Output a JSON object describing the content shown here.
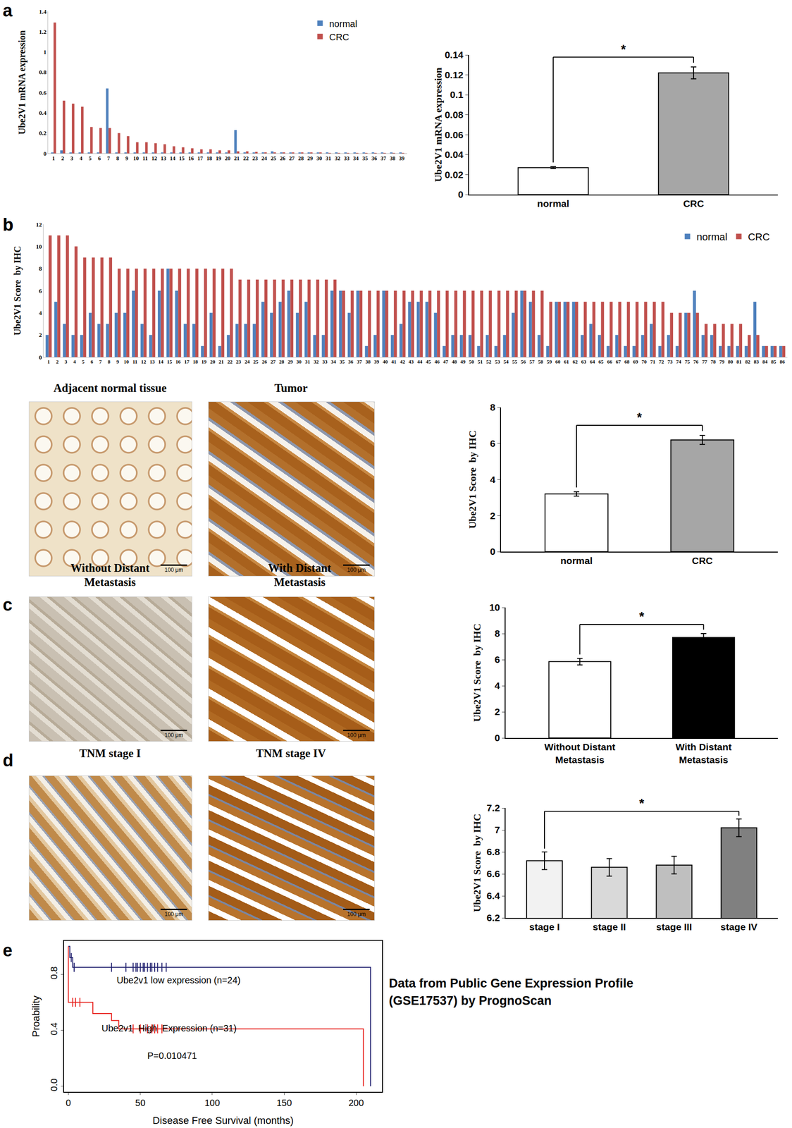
{
  "chart_data": [
    {
      "panel": "a",
      "type": "bar",
      "categories": [
        "1",
        "2",
        "3",
        "4",
        "5",
        "6",
        "7",
        "8",
        "9",
        "10",
        "11",
        "12",
        "13",
        "14",
        "15",
        "16",
        "17",
        "18",
        "19",
        "20",
        "21",
        "22",
        "23",
        "24",
        "25",
        "26",
        "27",
        "28",
        "29",
        "30",
        "31",
        "32",
        "33",
        "34",
        "35",
        "36",
        "37",
        "38",
        "39"
      ],
      "series": [
        {
          "name": "normal",
          "color": "#4f81bd",
          "values": [
            0.005,
            0.03,
            0.005,
            0.005,
            0.005,
            0.005,
            0.64,
            0.005,
            0.005,
            0.005,
            0.005,
            0.005,
            0.005,
            0.005,
            0.005,
            0.005,
            0.005,
            0.005,
            0.005,
            0.005,
            0.23,
            0.01,
            0.005,
            0.01,
            0.02,
            0.01,
            0.005,
            0.005,
            0.005,
            0.005,
            0.01,
            0.01,
            0.005,
            0.005,
            0.005,
            0.01,
            0.005,
            0.005,
            0.005
          ]
        },
        {
          "name": "CRC",
          "color": "#c0504d",
          "values": [
            1.29,
            0.52,
            0.49,
            0.46,
            0.26,
            0.25,
            0.25,
            0.2,
            0.17,
            0.11,
            0.11,
            0.1,
            0.09,
            0.07,
            0.06,
            0.05,
            0.04,
            0.04,
            0.03,
            0.03,
            0.02,
            0.02,
            0.015,
            0.01,
            0.01,
            0.01,
            0.008,
            0.006,
            0.005,
            0.005,
            0.004,
            0.004,
            0.003,
            0.003,
            0.003,
            0.002,
            0.002,
            0.002,
            0.001
          ]
        }
      ],
      "y_label": "Ube2V1 mRNA expression",
      "ylim": [
        0,
        1.4
      ],
      "yticks": [
        0,
        0.2,
        0.4,
        0.6,
        0.8,
        1,
        1.2,
        1.4
      ],
      "grid": false,
      "legend": "top right"
    },
    {
      "type": "bar",
      "categories": [
        "normal",
        "CRC"
      ],
      "values": [
        0.027,
        0.122
      ],
      "errors": [
        0.001,
        0.006
      ],
      "colors": [
        "#ffffff",
        "#a6a6a6"
      ],
      "y_label": "Ube2V1 mRNA expression",
      "ylim": [
        0,
        0.14
      ],
      "yticks": [
        0,
        0.02,
        0.04,
        0.06,
        0.08,
        0.1,
        0.12,
        0.14
      ],
      "grid": false,
      "significance": {
        "label": "*",
        "between": [
          0,
          1
        ]
      }
    },
    {
      "panel": "b",
      "type": "bar",
      "categories": [
        "1",
        "2",
        "3",
        "4",
        "5",
        "6",
        "7",
        "8",
        "9",
        "10",
        "11",
        "12",
        "13",
        "14",
        "15",
        "16",
        "17",
        "18",
        "19",
        "20",
        "21",
        "22",
        "23",
        "24",
        "25",
        "26",
        "27",
        "28",
        "29",
        "30",
        "31",
        "32",
        "33",
        "34",
        "35",
        "36",
        "37",
        "38",
        "39",
        "40",
        "41",
        "42",
        "43",
        "44",
        "45",
        "46",
        "47",
        "48",
        "49",
        "50",
        "51",
        "52",
        "53",
        "54",
        "55",
        "56",
        "57",
        "58",
        "59",
        "60",
        "61",
        "62",
        "63",
        "64",
        "65",
        "66",
        "67",
        "68",
        "69",
        "70",
        "71",
        "72",
        "73",
        "74",
        "75",
        "76",
        "77",
        "78",
        "79",
        "80",
        "81",
        "82",
        "83",
        "84",
        "85",
        "86"
      ],
      "series": [
        {
          "name": "normal",
          "color": "#4f81bd",
          "values": [
            2,
            5,
            3,
            2,
            2,
            4,
            3,
            3,
            4,
            4,
            6,
            3,
            2,
            6,
            8,
            6,
            3,
            3,
            1,
            4,
            1,
            2,
            3,
            3,
            3,
            5,
            4,
            5,
            6,
            4,
            5,
            2,
            2,
            6,
            6,
            4,
            6,
            1,
            2,
            6,
            2,
            3,
            5,
            5,
            5,
            4,
            1,
            2,
            2,
            2,
            1,
            2,
            1,
            2,
            4,
            6,
            5,
            2,
            1,
            5,
            5,
            5,
            2,
            3,
            2,
            1,
            2,
            1,
            1,
            2,
            3,
            1,
            2,
            1,
            4,
            6,
            2,
            2,
            1,
            1,
            1,
            1,
            5,
            1,
            1,
            1
          ]
        },
        {
          "name": "CRC",
          "color": "#c0504d",
          "values": [
            11,
            11,
            11,
            10,
            9,
            9,
            9,
            9,
            8,
            8,
            8,
            8,
            8,
            8,
            8,
            8,
            8,
            8,
            8,
            8,
            8,
            8,
            7,
            7,
            7,
            7,
            7,
            7,
            7,
            7,
            7,
            7,
            7,
            7,
            6,
            6,
            6,
            6,
            6,
            6,
            6,
            6,
            6,
            6,
            6,
            6,
            6,
            6,
            6,
            6,
            6,
            6,
            6,
            6,
            6,
            6,
            6,
            6,
            5,
            5,
            5,
            5,
            5,
            5,
            5,
            5,
            5,
            5,
            5,
            5,
            5,
            5,
            4,
            4,
            4,
            4,
            3,
            3,
            3,
            3,
            3,
            2,
            2,
            1,
            1,
            1
          ]
        }
      ],
      "y_label": "Ube2V1 Score  by IHC",
      "ylim": [
        0,
        12
      ],
      "yticks": [
        0,
        2,
        4,
        6,
        8,
        10,
        12
      ],
      "grid": false,
      "legend": "top right"
    },
    {
      "type": "bar",
      "categories": [
        "normal",
        "CRC"
      ],
      "values": [
        3.2,
        6.2
      ],
      "errors": [
        0.12,
        0.25
      ],
      "colors": [
        "#ffffff",
        "#a6a6a6"
      ],
      "y_label": "Ube2V1 Score  by IHC",
      "ylim": [
        0,
        8
      ],
      "yticks": [
        0,
        2,
        4,
        6,
        8
      ],
      "grid": false,
      "significance": {
        "label": "*",
        "between": [
          0,
          1
        ]
      }
    },
    {
      "type": "bar",
      "categories": [
        "Without Distant Metastasis",
        "With Distant Metastasis"
      ],
      "values": [
        5.85,
        7.7
      ],
      "errors": [
        0.25,
        0.3
      ],
      "colors": [
        "#ffffff",
        "#000000"
      ],
      "y_label": "Ube2V1 Score  by IHC",
      "ylim": [
        0,
        10
      ],
      "yticks": [
        0,
        2,
        4,
        6,
        8,
        10
      ],
      "grid": false,
      "significance": {
        "label": "*",
        "between": [
          0,
          1
        ]
      }
    },
    {
      "type": "bar",
      "categories": [
        "stage I",
        "stage II",
        "stage III",
        "stage IV"
      ],
      "values": [
        6.72,
        6.66,
        6.68,
        7.02
      ],
      "errors": [
        0.08,
        0.08,
        0.08,
        0.08
      ],
      "colors": [
        "#f2f2f2",
        "#d9d9d9",
        "#bfbfbf",
        "#808080"
      ],
      "y_label": "Ube2V1 Score  by IHC",
      "ylim": [
        6.2,
        7.2
      ],
      "yticks": [
        6.2,
        6.4,
        6.6,
        6.8,
        7,
        7.2
      ],
      "grid": false,
      "significance": {
        "label": "*",
        "between": [
          0,
          3
        ]
      }
    },
    {
      "panel": "e",
      "type": "line",
      "x_label": "Disease Free Survival (months)",
      "y_label": "Proability",
      "series": [
        {
          "name": "Ube2v1 low expression (n=24)",
          "color": "#1f1f6e",
          "line_style": "step",
          "x": [
            0,
            1,
            3,
            210,
            210
          ],
          "values": [
            1,
            0.92,
            0.85,
            0.85,
            0
          ],
          "censored": {
            "marker": "vertical-tick",
            "x": [
              2,
              4,
              30,
              40,
              45,
              47,
              48,
              50,
              52,
              53,
              55,
              57,
              58,
              60,
              62,
              65,
              68
            ],
            "values": [
              0.92,
              0.85,
              0.85,
              0.85,
              0.85,
              0.85,
              0.85,
              0.85,
              0.85,
              0.85,
              0.85,
              0.85,
              0.85,
              0.85,
              0.85,
              0.85,
              0.85
            ]
          }
        },
        {
          "name": "Ube2v1  High  Expression (n=31)",
          "color": "#e8231f",
          "line_style": "step",
          "x": [
            0,
            0,
            17,
            30,
            35,
            205,
            205
          ],
          "values": [
            1,
            0.6,
            0.52,
            0.47,
            0.41,
            0.41,
            0
          ],
          "censored": {
            "marker": "vertical-tick",
            "x": [
              3,
              5,
              8,
              45,
              50,
              55,
              58,
              60,
              62,
              65
            ],
            "values": [
              0.6,
              0.6,
              0.6,
              0.41,
              0.41,
              0.41,
              0.41,
              0.41,
              0.41,
              0.41
            ]
          }
        }
      ],
      "annotations": [
        "P=0.010471"
      ],
      "xlim": [
        -3,
        218
      ],
      "xticks": [
        0,
        50,
        100,
        150,
        200
      ],
      "ylim": [
        -0.04,
        1.04
      ],
      "yticks": [
        {
          "value": 0,
          "label": "0.0"
        },
        {
          "value": 0.4,
          "label": "0.4"
        },
        {
          "value": 0.8,
          "label": "0.8"
        }
      ],
      "grid": false
    }
  ],
  "images": [
    {
      "panel": "b",
      "caption": "Adjacent  normal tissue",
      "scale_bar": "100 μm"
    },
    {
      "caption": "Tumor",
      "scale_bar": "100 μm"
    },
    {
      "panel": "c",
      "caption": "Without Distant Metastasis",
      "scale_bar": "100 μm"
    },
    {
      "caption": "With Distant Metastasis",
      "scale_bar": "100 μm"
    },
    {
      "panel": "d",
      "caption": "TNM stage I",
      "scale_bar": "100 μm"
    },
    {
      "caption": "TNM  stage IV",
      "scale_bar": "100 μm"
    }
  ],
  "note": "Data from Public Gene Expression Profile (GSE17537) by PrognoScan"
}
